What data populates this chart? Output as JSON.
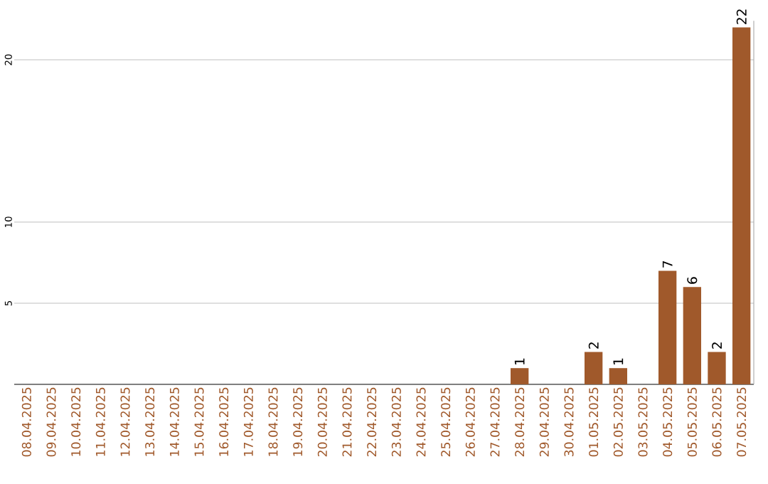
{
  "chart_data": {
    "type": "bar",
    "categories": [
      "08.04.2025",
      "09.04.2025",
      "10.04.2025",
      "11.04.2025",
      "12.04.2025",
      "13.04.2025",
      "14.04.2025",
      "15.04.2025",
      "16.04.2025",
      "17.04.2025",
      "18.04.2025",
      "19.04.2025",
      "20.04.2025",
      "21.04.2025",
      "22.04.2025",
      "23.04.2025",
      "24.04.2025",
      "25.04.2025",
      "26.04.2025",
      "27.04.2025",
      "28.04.2025",
      "29.04.2025",
      "30.04.2025",
      "01.05.2025",
      "02.05.2025",
      "03.05.2025",
      "04.05.2025",
      "05.05.2025",
      "06.05.2025",
      "07.05.2025"
    ],
    "values": [
      0,
      0,
      0,
      0,
      0,
      0,
      0,
      0,
      0,
      0,
      0,
      0,
      0,
      0,
      0,
      0,
      0,
      0,
      0,
      0,
      1,
      0,
      0,
      2,
      1,
      0,
      7,
      6,
      2,
      22
    ],
    "value_labels": [
      null,
      null,
      null,
      null,
      null,
      null,
      null,
      null,
      null,
      null,
      null,
      null,
      null,
      null,
      null,
      null,
      null,
      null,
      null,
      null,
      "1",
      null,
      null,
      "2",
      "1",
      null,
      "7",
      "6",
      "2",
      "22"
    ],
    "color": "#a0592b",
    "ylim": [
      0,
      22.4
    ],
    "yticks": [
      5,
      10,
      20
    ],
    "grid": "y"
  }
}
